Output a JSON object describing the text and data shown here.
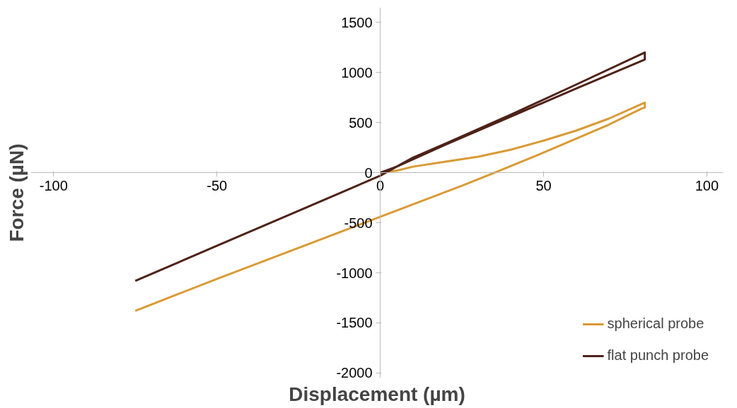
{
  "chart_data": {
    "type": "line",
    "xlabel": "Displacement (µm)",
    "ylabel": "Force (µN)",
    "xlim": [
      -107,
      105
    ],
    "ylim": [
      -2050,
      1650
    ],
    "xticks": [
      -100,
      -50,
      0,
      50,
      100
    ],
    "yticks": [
      -2000,
      -1500,
      -1000,
      -500,
      0,
      500,
      1000,
      1500
    ],
    "grid": false,
    "legend": "bottom right",
    "marker": "none",
    "line_style": "solid",
    "series": [
      {
        "name": "spherical probe",
        "color": "#d99a35",
        "x": [
          0,
          5,
          10,
          20,
          30,
          40,
          50,
          60,
          70,
          81,
          81,
          80,
          70,
          60,
          50,
          35,
          25,
          0,
          -25,
          -50,
          -75
        ],
        "values": [
          0,
          20,
          60,
          110,
          160,
          230,
          320,
          420,
          540,
          700,
          650,
          640,
          480,
          340,
          200,
          0,
          -130,
          -440,
          -750,
          -1060,
          -1380
        ]
      },
      {
        "name": "flat punch probe",
        "color": "#4e2218",
        "x": [
          0,
          5,
          10,
          20,
          40,
          60,
          81,
          81,
          60,
          40,
          20,
          5,
          0,
          -25,
          -50,
          -75
        ],
        "values": [
          0,
          60,
          150,
          290,
          580,
          880,
          1200,
          1130,
          840,
          560,
          280,
          60,
          -30,
          -380,
          -730,
          -1080
        ]
      }
    ]
  }
}
